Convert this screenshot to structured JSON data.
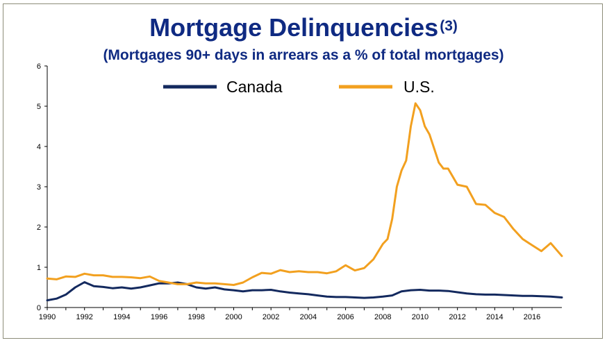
{
  "title": "Mortgage Delinquencies",
  "title_superscript": "(3)",
  "subtitle": "(Mortgages 90+ days in arrears as a % of total mortgages)",
  "colors": {
    "title": "#0f2a82",
    "canada": "#13295e",
    "us": "#f2a01f",
    "axis": "#000000",
    "frame": "#8c8c78"
  },
  "chart_data": {
    "type": "line",
    "title": "Mortgage Delinquencies(3)",
    "subtitle": "(Mortgages 90+ days in arrears as a % of total mortgages)",
    "xlabel": "",
    "ylabel": "",
    "xlim": [
      1990,
      2017.6
    ],
    "ylim": [
      0,
      6
    ],
    "x_ticks": [
      "1990",
      "1992",
      "1994",
      "1996",
      "1998",
      "2000",
      "2002",
      "2004",
      "2006",
      "2008",
      "2010",
      "2012",
      "2014",
      "2016"
    ],
    "y_ticks": [
      "0",
      "1",
      "2",
      "3",
      "4",
      "5",
      "6"
    ],
    "grid": false,
    "legend_position": "top",
    "series": [
      {
        "name": "Canada",
        "color": "#13295e",
        "x": [
          1990,
          1990.5,
          1991,
          1991.5,
          1992,
          1992.5,
          1993,
          1993.5,
          1994,
          1994.5,
          1995,
          1995.5,
          1996,
          1996.5,
          1997,
          1997.5,
          1998,
          1998.5,
          1999,
          1999.5,
          2000,
          2000.5,
          2001,
          2001.5,
          2002,
          2002.5,
          2003,
          2003.5,
          2004,
          2004.5,
          2005,
          2005.5,
          2006,
          2006.5,
          2007,
          2007.5,
          2008,
          2008.5,
          2009,
          2009.5,
          2010,
          2010.5,
          2011,
          2011.5,
          2012,
          2012.5,
          2013,
          2013.5,
          2014,
          2014.5,
          2015,
          2015.5,
          2016,
          2016.5,
          2017,
          2017.6
        ],
        "y": [
          0.18,
          0.22,
          0.32,
          0.5,
          0.63,
          0.53,
          0.51,
          0.48,
          0.5,
          0.47,
          0.5,
          0.55,
          0.6,
          0.6,
          0.62,
          0.58,
          0.5,
          0.47,
          0.5,
          0.45,
          0.43,
          0.4,
          0.43,
          0.43,
          0.44,
          0.4,
          0.37,
          0.35,
          0.33,
          0.3,
          0.27,
          0.26,
          0.26,
          0.25,
          0.24,
          0.25,
          0.27,
          0.3,
          0.4,
          0.43,
          0.44,
          0.42,
          0.42,
          0.41,
          0.38,
          0.35,
          0.33,
          0.32,
          0.32,
          0.31,
          0.3,
          0.29,
          0.29,
          0.28,
          0.27,
          0.25
        ]
      },
      {
        "name": "U.S.",
        "color": "#f2a01f",
        "x": [
          1990,
          1990.5,
          1991,
          1991.5,
          1992,
          1992.5,
          1993,
          1993.5,
          1994,
          1994.5,
          1995,
          1995.5,
          1996,
          1996.5,
          1997,
          1997.5,
          1998,
          1998.5,
          1999,
          1999.5,
          2000,
          2000.5,
          2001,
          2001.5,
          2002,
          2002.5,
          2003,
          2003.5,
          2004,
          2004.5,
          2005,
          2005.5,
          2006,
          2006.5,
          2007,
          2007.5,
          2008,
          2008.25,
          2008.5,
          2008.75,
          2009,
          2009.25,
          2009.5,
          2009.75,
          2010,
          2010.25,
          2010.5,
          2010.75,
          2011,
          2011.25,
          2011.5,
          2012,
          2012.5,
          2013,
          2013.5,
          2014,
          2014.5,
          2015,
          2015.5,
          2016,
          2016.5,
          2017,
          2017.6
        ],
        "y": [
          0.72,
          0.7,
          0.77,
          0.76,
          0.84,
          0.8,
          0.8,
          0.76,
          0.76,
          0.75,
          0.73,
          0.77,
          0.66,
          0.62,
          0.58,
          0.58,
          0.62,
          0.6,
          0.6,
          0.58,
          0.56,
          0.62,
          0.75,
          0.86,
          0.84,
          0.93,
          0.88,
          0.9,
          0.88,
          0.88,
          0.85,
          0.9,
          1.05,
          0.92,
          0.98,
          1.2,
          1.58,
          1.7,
          2.2,
          3.0,
          3.4,
          3.65,
          4.5,
          5.07,
          4.9,
          4.5,
          4.3,
          3.95,
          3.6,
          3.45,
          3.45,
          3.05,
          3.0,
          2.57,
          2.55,
          2.35,
          2.25,
          1.95,
          1.7,
          1.55,
          1.4,
          1.6,
          1.28
        ]
      }
    ]
  }
}
